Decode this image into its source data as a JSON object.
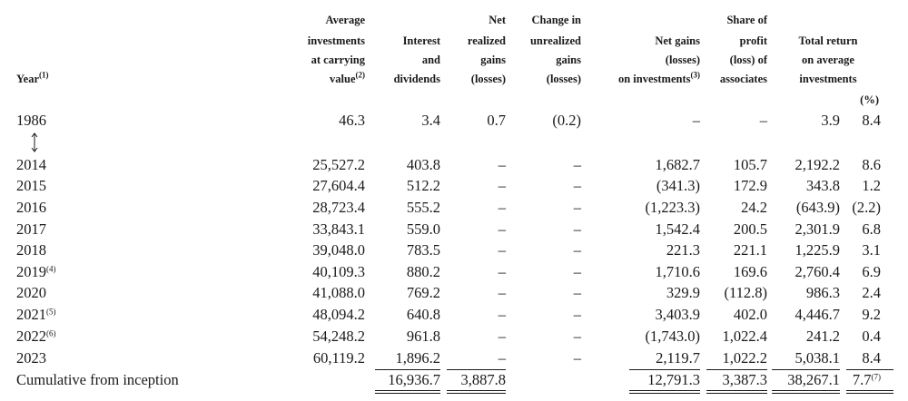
{
  "table": {
    "year_header": {
      "lines": [
        "Year"
      ],
      "note": "(1)"
    },
    "headers": [
      {
        "lines": [
          "Average",
          "investments",
          "at carrying",
          "value"
        ],
        "note": "(2)"
      },
      {
        "lines": [
          "Interest",
          "and",
          "dividends"
        ]
      },
      {
        "lines": [
          "Net",
          "realized",
          "gains",
          "(losses)"
        ]
      },
      {
        "lines": [
          "Change in",
          "unrealized",
          "gains",
          "(losses)"
        ]
      },
      {
        "lines": [
          "Net gains",
          "(losses)",
          "on investments"
        ],
        "note": "(3)"
      },
      {
        "lines": [
          "Share of",
          "profit",
          "(loss) of",
          "associates"
        ]
      },
      {
        "lines": [
          "Total return",
          "on average",
          "investments"
        ]
      }
    ],
    "percent_unit": "(%)",
    "rows": [
      {
        "year": "1986",
        "cells": [
          "46.3",
          "3.4",
          "0.7",
          "(0.2)",
          "–",
          "–",
          "3.9",
          "8.4"
        ]
      },
      {
        "year": "2014",
        "cells": [
          "25,527.2",
          "403.8",
          "–",
          "–",
          "1,682.7",
          "105.7",
          "2,192.2",
          "8.6"
        ]
      },
      {
        "year": "2015",
        "cells": [
          "27,604.4",
          "512.2",
          "–",
          "–",
          "(341.3)",
          "172.9",
          "343.8",
          "1.2"
        ]
      },
      {
        "year": "2016",
        "cells": [
          "28,723.4",
          "555.2",
          "–",
          "–",
          "(1,223.3)",
          "24.2",
          "(643.9)",
          "(2.2)"
        ]
      },
      {
        "year": "2017",
        "cells": [
          "33,843.1",
          "559.0",
          "–",
          "–",
          "1,542.4",
          "200.5",
          "2,301.9",
          "6.8"
        ]
      },
      {
        "year": "2018",
        "cells": [
          "39,048.0",
          "783.5",
          "–",
          "–",
          "221.3",
          "221.1",
          "1,225.9",
          "3.1"
        ]
      },
      {
        "year": "2019",
        "note": "(4)",
        "cells": [
          "40,109.3",
          "880.2",
          "–",
          "–",
          "1,710.6",
          "169.6",
          "2,760.4",
          "6.9"
        ]
      },
      {
        "year": "2020",
        "cells": [
          "41,088.0",
          "769.2",
          "–",
          "–",
          "329.9",
          "(112.8)",
          "986.3",
          "2.4"
        ]
      },
      {
        "year": "2021",
        "note": "(5)",
        "cells": [
          "48,094.2",
          "640.8",
          "–",
          "–",
          "3,403.9",
          "402.0",
          "4,446.7",
          "9.2"
        ]
      },
      {
        "year": "2022",
        "note": "(6)",
        "cells": [
          "54,248.2",
          "961.8",
          "–",
          "–",
          "(1,743.0)",
          "1,022.4",
          "241.2",
          "0.4"
        ]
      },
      {
        "year": "2023",
        "cells": [
          "60,119.2",
          "1,896.2",
          "–",
          "–",
          "2,119.7",
          "1,022.2",
          "5,038.1",
          "8.4"
        ]
      }
    ],
    "footer": {
      "label": "Cumulative from inception",
      "cells": [
        null,
        "16,936.7",
        "3,887.8",
        null,
        "12,791.3",
        "3,387.3",
        "38,267.1",
        "7.7"
      ],
      "note": "(7)"
    }
  }
}
